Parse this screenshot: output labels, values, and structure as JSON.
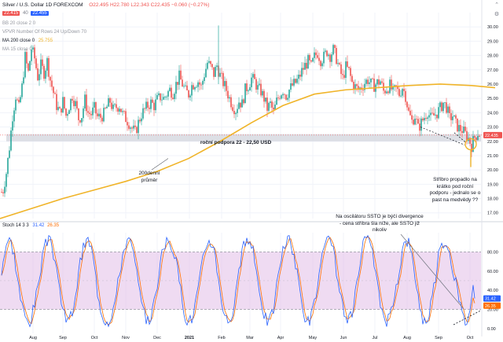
{
  "header": {
    "symbol_line": "Silver / U.S. Dollar  1D  FOREXCOM",
    "bid": "22.415",
    "spread": "40",
    "ask": "22.455",
    "ohlc": "O22.495  H22.780  L22.343  C22.435  −0.060 (−0.27%)"
  },
  "indicators": [
    {
      "label": "BB 20 close 2 0",
      "muted": true
    },
    {
      "label": "VPVR Number Of Rows 24 Up/Down 70",
      "muted": true
    },
    {
      "label": "MA 200 close 0",
      "value": "25.755",
      "muted": false
    },
    {
      "label": "MA 15 close 0",
      "muted": true
    }
  ],
  "stoch_legend": {
    "label": "Stoch 14 3 3",
    "k": "31.42",
    "d": "26.35"
  },
  "annotations": {
    "support_label": "roční podpora 22 - 22,50 USD",
    "ma200_label": [
      "200denní",
      "průměr"
    ],
    "breakdown_note": [
      "Stříbro propadlo na",
      "krátko pod roční",
      "podporu - jednalo se o",
      "past na medvědy ??"
    ],
    "divergence_note": [
      "Na oscilátoru SSTO je býčí divergence",
      "- cena stříbra šla níže, ale SSTO již",
      "nikoliv"
    ]
  },
  "colors": {
    "up": "#26a69a",
    "down": "#ef5350",
    "ma200": "#f0b429",
    "stoch_k": "#2962ff",
    "stoch_d": "#ff6d00",
    "stoch_band": "#e1bee7",
    "support_zone": "#d1d4dc"
  },
  "icons": [
    "chevron-up-icon",
    "settings-icon"
  ],
  "chart_data": [
    {
      "type": "candlestick",
      "title": "Silver / U.S. Dollar  1D  FOREXCOM",
      "x_ticks": [
        "Aug",
        "Sep",
        "Oct",
        "Nov",
        "Dec",
        "2021",
        "Feb",
        "Mar",
        "Apr",
        "May",
        "Jun",
        "Jul",
        "Aug",
        "Sep",
        "Oct"
      ],
      "y_ticks": [
        17.0,
        18.0,
        19.0,
        20.0,
        21.0,
        22.0,
        23.0,
        24.0,
        25.0,
        26.0,
        27.0,
        28.0,
        29.0,
        30.0
      ],
      "ylim": [
        16.6,
        31.0
      ],
      "last_price": 22.435,
      "last_price_label": "22.435",
      "support_zone": [
        22.0,
        22.5
      ],
      "close_path": [
        [
          0,
          18.3
        ],
        [
          4,
          18.6
        ],
        [
          8,
          19.8
        ],
        [
          12,
          21.6
        ],
        [
          16,
          23.8
        ],
        [
          20,
          25.2
        ],
        [
          24,
          24.3
        ],
        [
          28,
          25.8
        ],
        [
          32,
          27.9
        ],
        [
          36,
          26.8
        ],
        [
          40,
          28.5
        ],
        [
          44,
          27.8
        ],
        [
          48,
          26.5
        ],
        [
          52,
          27.3
        ],
        [
          56,
          26.8
        ],
        [
          60,
          27.6
        ],
        [
          64,
          26.3
        ],
        [
          68,
          25.4
        ],
        [
          72,
          24.5
        ],
        [
          76,
          24.0
        ],
        [
          80,
          24.8
        ],
        [
          84,
          23.8
        ],
        [
          88,
          24.5
        ],
        [
          92,
          25.2
        ],
        [
          96,
          24.6
        ],
        [
          100,
          23.6
        ],
        [
          104,
          23.8
        ],
        [
          108,
          24.9
        ],
        [
          112,
          24.0
        ],
        [
          116,
          23.9
        ],
        [
          120,
          24.3
        ],
        [
          124,
          23.7
        ],
        [
          128,
          23.7
        ],
        [
          132,
          23.9
        ],
        [
          136,
          24.4
        ],
        [
          140,
          24.8
        ],
        [
          144,
          24.2
        ],
        [
          148,
          24.4
        ],
        [
          152,
          24.5
        ],
        [
          156,
          23.9
        ],
        [
          160,
          23.6
        ],
        [
          164,
          23.3
        ],
        [
          168,
          22.9
        ],
        [
          172,
          22.6
        ],
        [
          176,
          23.3
        ],
        [
          180,
          23.9
        ],
        [
          184,
          24.2
        ],
        [
          188,
          24.5
        ],
        [
          192,
          24.7
        ],
        [
          196,
          24.5
        ],
        [
          200,
          24.9
        ],
        [
          204,
          25.1
        ],
        [
          208,
          25.0
        ],
        [
          212,
          25.3
        ],
        [
          216,
          25.6
        ],
        [
          220,
          25.4
        ],
        [
          224,
          26.0
        ],
        [
          228,
          26.5
        ],
        [
          232,
          26.0
        ],
        [
          236,
          25.5
        ],
        [
          240,
          25.3
        ],
        [
          244,
          25.9
        ],
        [
          248,
          26.1
        ],
        [
          252,
          26.2
        ],
        [
          256,
          25.8
        ],
        [
          260,
          26.7
        ],
        [
          264,
          27.5
        ],
        [
          268,
          27.2
        ],
        [
          272,
          26.7
        ],
        [
          276,
          27.3
        ],
        [
          280,
          26.6
        ],
        [
          284,
          26.1
        ],
        [
          288,
          25.6
        ],
        [
          292,
          25.0
        ],
        [
          296,
          24.5
        ],
        [
          300,
          24.2
        ],
        [
          304,
          24.8
        ],
        [
          308,
          24.6
        ],
        [
          312,
          25.6
        ],
        [
          316,
          25.9
        ],
        [
          320,
          26.4
        ],
        [
          324,
          26.2
        ],
        [
          328,
          25.7
        ],
        [
          332,
          25.5
        ],
        [
          336,
          25.0
        ],
        [
          340,
          24.3
        ],
        [
          344,
          24.6
        ],
        [
          348,
          24.0
        ],
        [
          352,
          24.8
        ],
        [
          356,
          25.3
        ],
        [
          360,
          25.6
        ],
        [
          364,
          25.2
        ],
        [
          368,
          25.6
        ],
        [
          372,
          25.9
        ],
        [
          376,
          26.1
        ],
        [
          380,
          26.4
        ],
        [
          384,
          26.9
        ],
        [
          388,
          27.3
        ],
        [
          392,
          27.6
        ],
        [
          396,
          27.2
        ],
        [
          400,
          27.9
        ],
        [
          404,
          28.2
        ],
        [
          408,
          27.7
        ],
        [
          412,
          27.9
        ],
        [
          416,
          28.3
        ],
        [
          420,
          28.0
        ],
        [
          424,
          28.4
        ],
        [
          428,
          27.8
        ],
        [
          432,
          27.0
        ],
        [
          436,
          26.4
        ],
        [
          440,
          27.2
        ],
        [
          444,
          26.9
        ],
        [
          448,
          26.1
        ],
        [
          452,
          25.8
        ],
        [
          456,
          25.6
        ],
        [
          460,
          25.8
        ],
        [
          464,
          26.1
        ],
        [
          468,
          26.3
        ],
        [
          472,
          26.0
        ],
        [
          476,
          25.9
        ],
        [
          480,
          26.1
        ],
        [
          484,
          26.2
        ],
        [
          488,
          25.5
        ],
        [
          492,
          25.7
        ],
        [
          496,
          25.9
        ],
        [
          500,
          25.4
        ],
        [
          504,
          25.7
        ],
        [
          508,
          25.3
        ],
        [
          512,
          25.8
        ],
        [
          516,
          25.2
        ],
        [
          520,
          24.0
        ],
        [
          524,
          23.4
        ],
        [
          528,
          23.8
        ],
        [
          532,
          22.9
        ],
        [
          536,
          23.3
        ],
        [
          540,
          23.7
        ],
        [
          544,
          24.1
        ],
        [
          548,
          23.6
        ],
        [
          552,
          23.8
        ],
        [
          556,
          24.0
        ],
        [
          560,
          24.3
        ],
        [
          564,
          24.7
        ],
        [
          568,
          24.4
        ],
        [
          572,
          23.6
        ],
        [
          576,
          23.8
        ],
        [
          580,
          23.2
        ],
        [
          584,
          22.9
        ],
        [
          588,
          22.8
        ],
        [
          592,
          22.5
        ],
        [
          596,
          22.2
        ],
        [
          600,
          21.7
        ],
        [
          604,
          22.3
        ],
        [
          608,
          22.6
        ],
        [
          612,
          22.4
        ],
        [
          616,
          22.4
        ]
      ],
      "ma200_path": [
        [
          0,
          16.6
        ],
        [
          40,
          17.3
        ],
        [
          80,
          18.0
        ],
        [
          120,
          18.6
        ],
        [
          160,
          19.2
        ],
        [
          200,
          19.9
        ],
        [
          240,
          20.8
        ],
        [
          280,
          22.0
        ],
        [
          320,
          23.3
        ],
        [
          360,
          24.5
        ],
        [
          400,
          25.3
        ],
        [
          440,
          25.6
        ],
        [
          480,
          25.75
        ],
        [
          520,
          25.9
        ],
        [
          560,
          26.0
        ],
        [
          600,
          25.9
        ],
        [
          630,
          25.75
        ]
      ]
    },
    {
      "type": "line",
      "title": "Stoch 14 3 3",
      "series": [
        {
          "name": "%K",
          "last": 31.42
        },
        {
          "name": "%D",
          "last": 26.35
        }
      ],
      "y_ticks": [
        0.0,
        20.0,
        40.0,
        60.0,
        80.0
      ],
      "overbought": 80,
      "oversold": 20,
      "ylim": [
        -5,
        100
      ]
    }
  ]
}
